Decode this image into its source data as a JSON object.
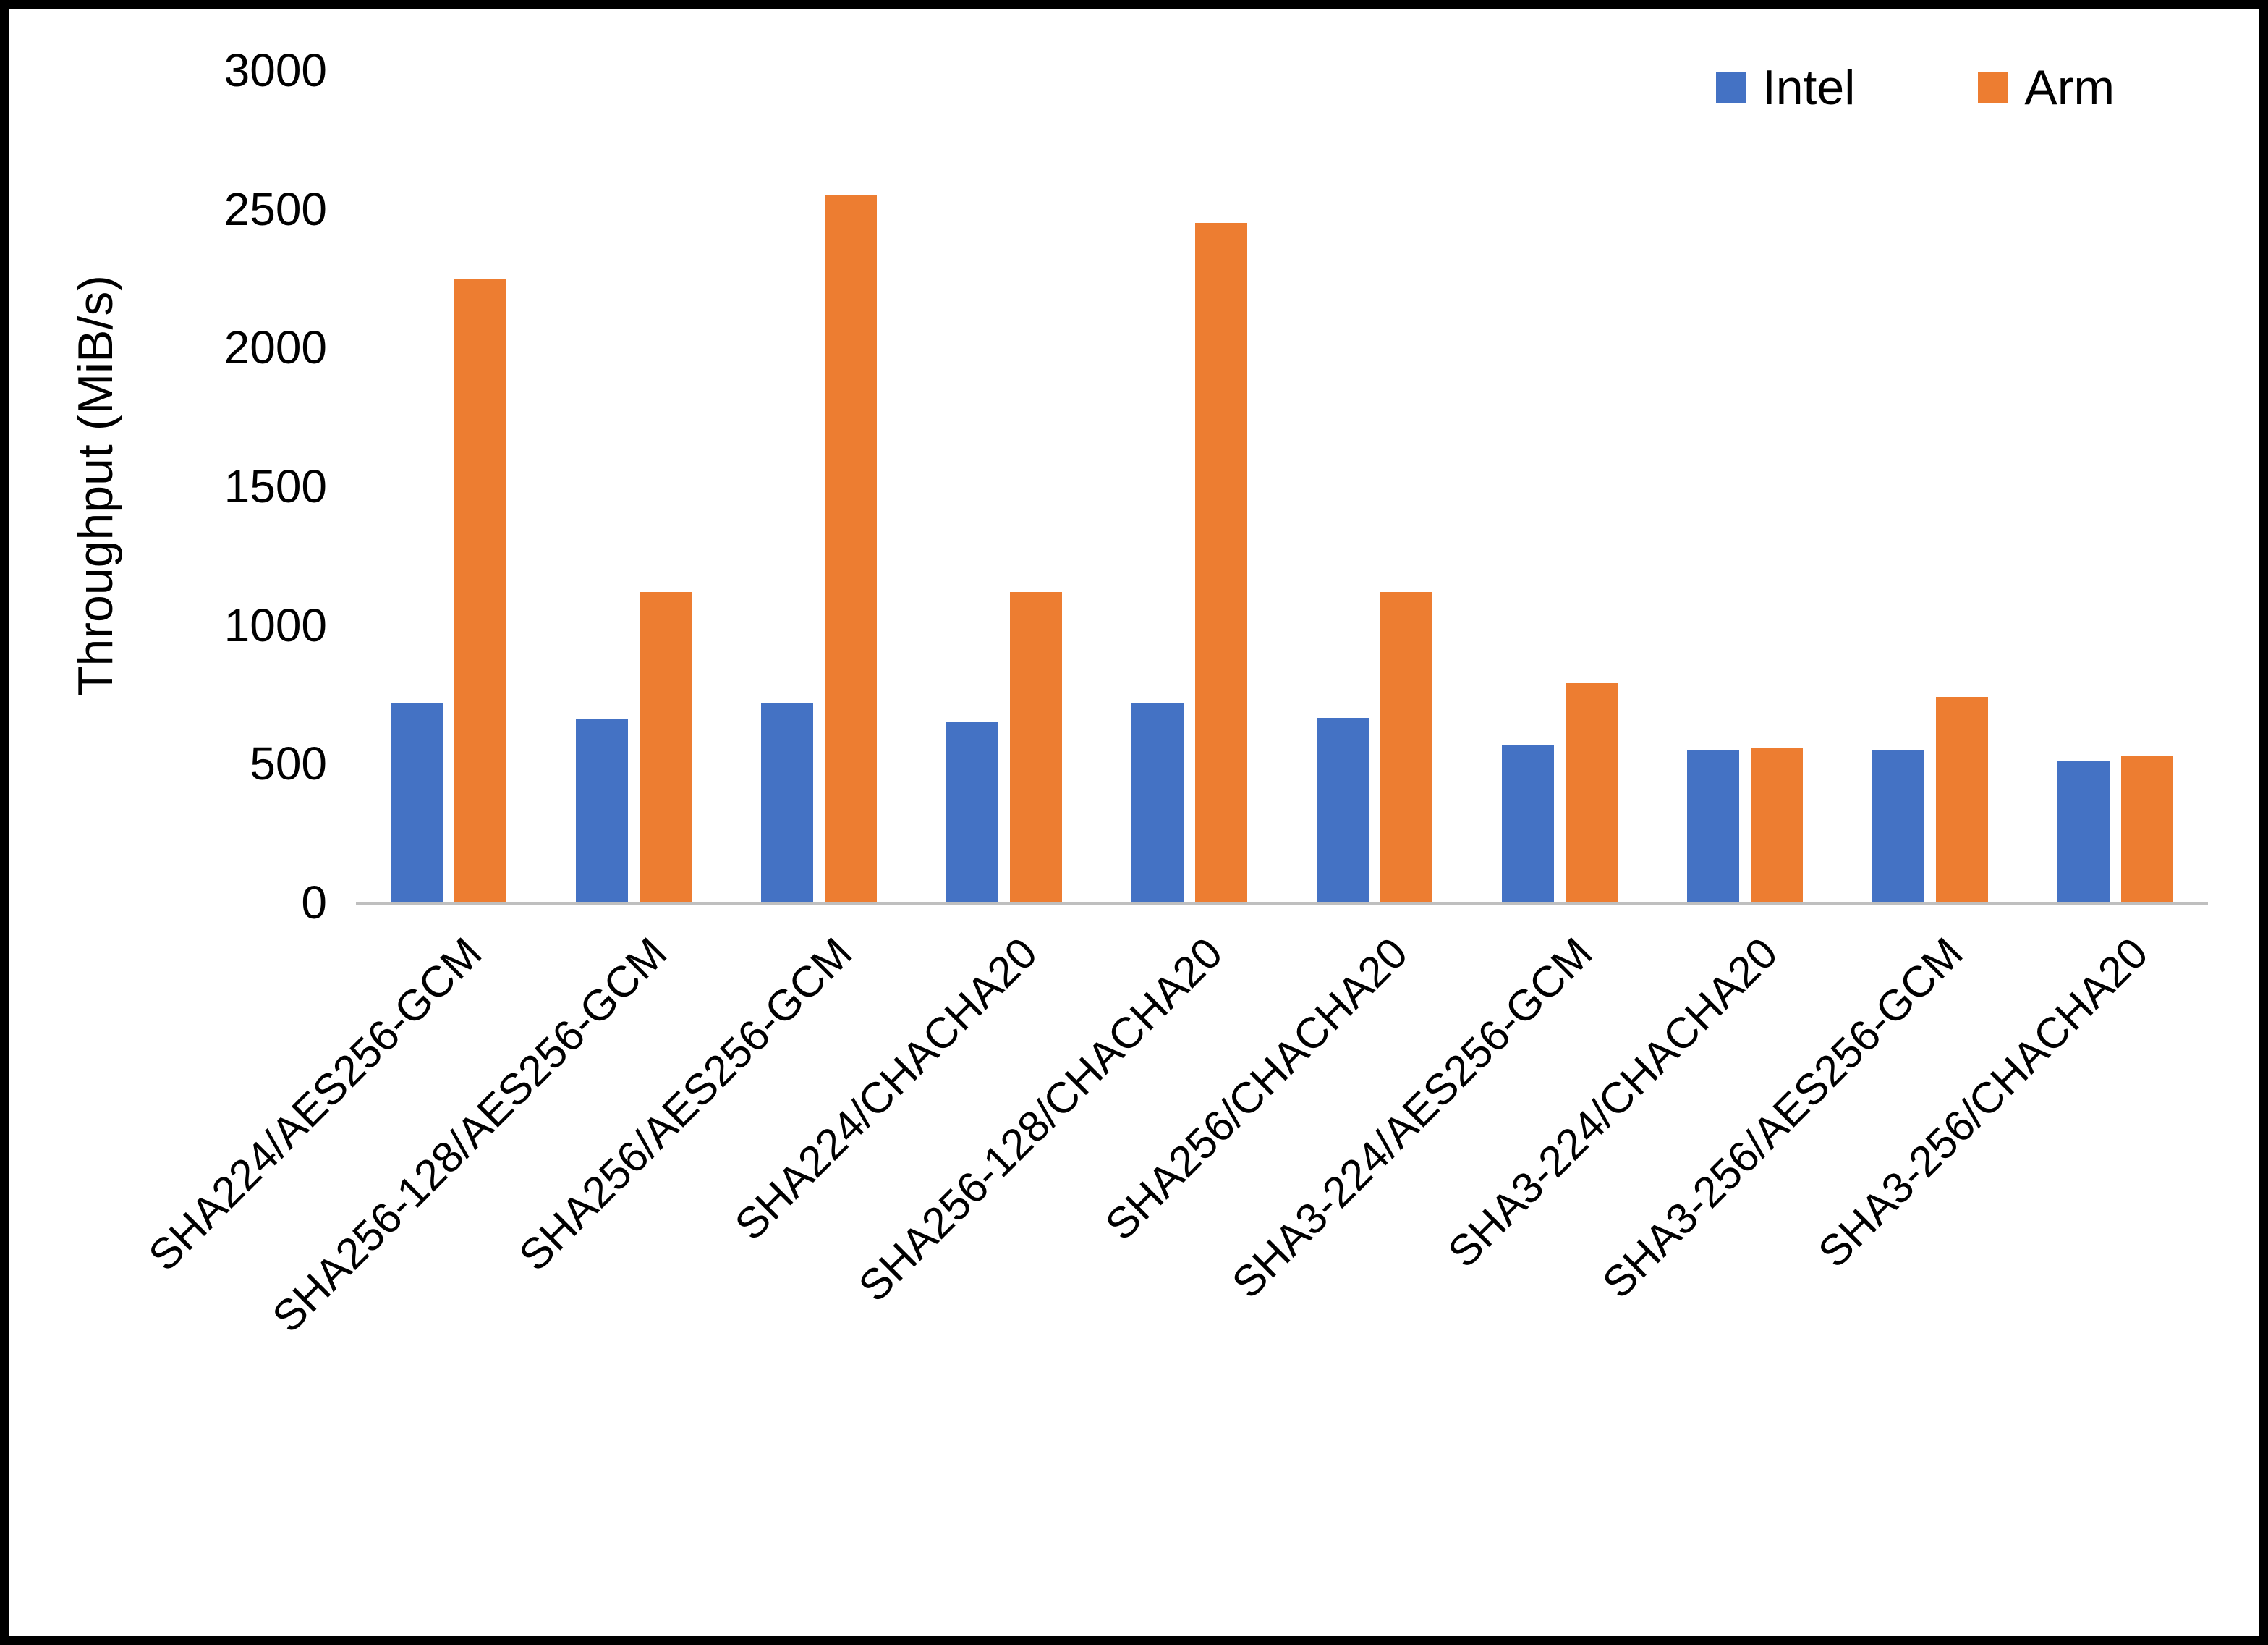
{
  "chart_data": {
    "type": "bar",
    "title": "",
    "xlabel": "",
    "ylabel": "Throughput (MiB/s)",
    "ylim": [
      0,
      3000
    ],
    "ytick_step": 500,
    "grid": false,
    "legend_position": "top-right",
    "categories": [
      "SHA224/AES256-GCM",
      "SHA256-128/AES256-GCM",
      "SHA256/AES256-GCM",
      "SHA224/CHACHA20",
      "SHA256-128/CHACHA20",
      "SHA256/CHACHA20",
      "SHA3-224/AES256-GCM",
      "SHA3-224/CHACHA20",
      "SHA3-256/AES256-GCM",
      "SHA3-256/CHACHA20"
    ],
    "series": [
      {
        "name": "Intel",
        "color": "#4472C4",
        "values": [
          720,
          660,
          720,
          650,
          720,
          665,
          570,
          550,
          550,
          510
        ]
      },
      {
        "name": "Arm",
        "color": "#ED7D31",
        "values": [
          2250,
          1120,
          2550,
          1120,
          2450,
          1120,
          790,
          555,
          740,
          530
        ]
      }
    ]
  }
}
